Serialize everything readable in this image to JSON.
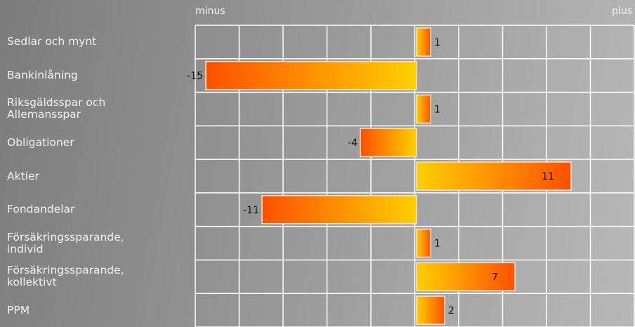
{
  "chart_data": {
    "type": "hbar",
    "axis_labels": {
      "left": "minus",
      "right": "plus"
    },
    "categories": [
      "Sedlar och mynt",
      "Bankinlåning",
      "Riksgäldsspar och Allemansspar",
      "Obligationer",
      "Aktier",
      "Fondandelar",
      "Försäkringssparande, individ",
      "Försäkringssparande, kollektivt",
      "PPM"
    ],
    "values": [
      1,
      -15,
      1,
      -4,
      11,
      -11,
      1,
      7,
      2
    ],
    "xlim": [
      -15.75,
      15.5
    ],
    "colors": {
      "near": "#ffd000",
      "far": "#ff5000"
    }
  }
}
